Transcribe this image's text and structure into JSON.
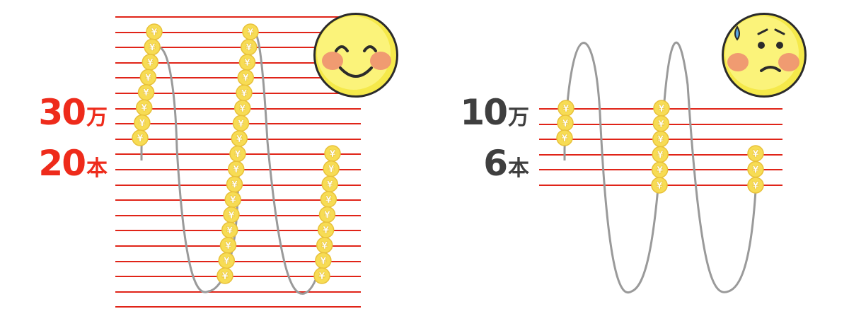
{
  "left": {
    "amount_value": "30",
    "amount_unit": "万",
    "count_value": "20",
    "count_unit": "本",
    "text_color": "#ee2b1b",
    "face": "happy-face-icon"
  },
  "right": {
    "amount_value": "10",
    "amount_unit": "万",
    "count_value": "6",
    "count_unit": "本",
    "text_color": "#3f3f3f",
    "face": "worried-face-icon"
  },
  "colors": {
    "line": "#e02418",
    "wave": "#9a9a9a",
    "coin": "#f7dc54",
    "coin_edge": "#e8c13a",
    "yen": "#ffffff"
  },
  "coin_symbol": "¥"
}
